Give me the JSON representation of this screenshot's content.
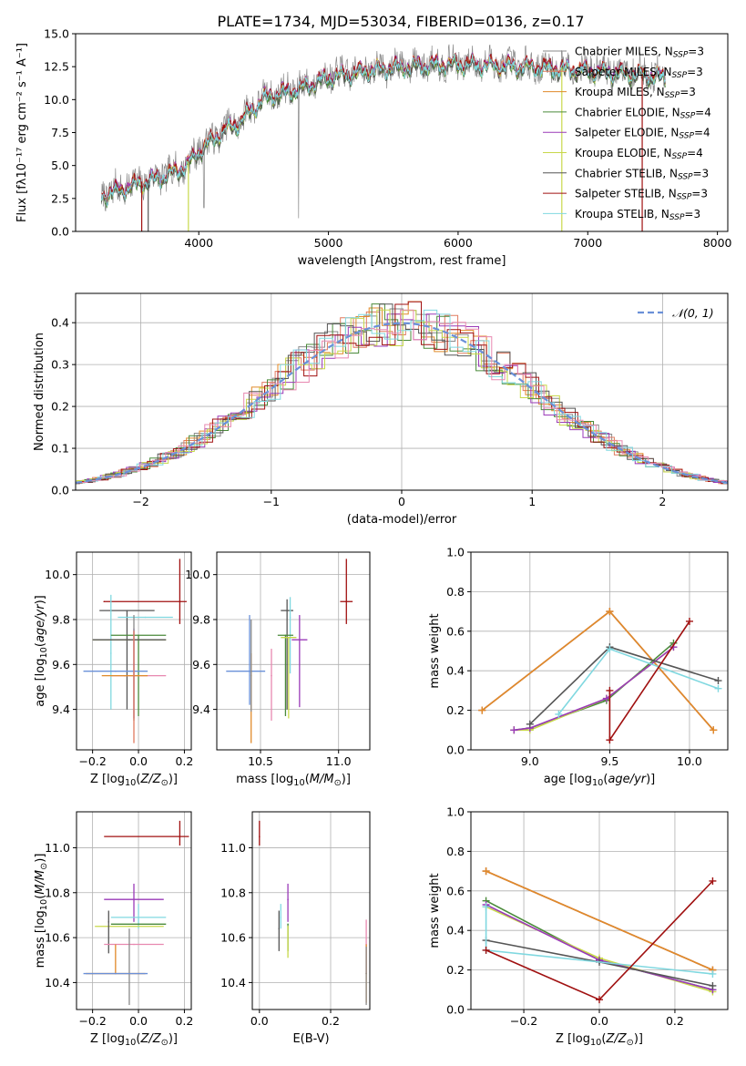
{
  "title": "PLATE=1734, MJD=53034, FIBERID=0136, z=0.17",
  "palette": {
    "chabrier_miles": "#8a8a8a",
    "salpeter_miles": "#e07a5f",
    "kroupa_miles": "#e08a2a",
    "chabrier_elodie": "#4a8a3a",
    "salpeter_elodie": "#9a3ab8",
    "kroupa_elodie": "#c8d84a",
    "chabrier_stelib": "#555555",
    "salpeter_stelib": "#a01010",
    "kroupa_stelib": "#80d8e0",
    "pink": "#e888b0",
    "blue_line": "#6a90d8"
  },
  "chart_data": [
    {
      "id": "spectrum",
      "type": "line",
      "title": "PLATE=1734, MJD=53034, FIBERID=0136, z=0.17",
      "xlabel": "wavelength [Angstrom, rest frame]",
      "ylabel": "Flux [fλ10⁻¹⁷ erg cm⁻² s⁻¹ A⁻¹]",
      "xlim": [
        3050,
        8080
      ],
      "ylim": [
        0,
        15
      ],
      "xticks": [
        4000,
        5000,
        6000,
        7000,
        8000
      ],
      "yticks": [
        0.0,
        2.5,
        5.0,
        7.5,
        10.0,
        12.5,
        15.0
      ],
      "grid": false,
      "legend_position": "top-right",
      "legend": [
        "Chabrier MILES, NSSP=3",
        "Salpeter MILES, NSSP=3",
        "Kroupa MILES, NSSP=3",
        "Chabrier ELODIE, NSSP=4",
        "Salpeter ELODIE, NSSP=4",
        "Kroupa ELODIE, NSSP=4",
        "Chabrier STELIB, NSSP=3",
        "Salpeter STELIB, NSSP=3",
        "Kroupa STELIB, NSSP=3"
      ],
      "continuum": {
        "x": [
          3250,
          3500,
          3700,
          3900,
          4000,
          4200,
          4300,
          4500,
          4800,
          5000,
          5300,
          5600,
          6000,
          6500,
          7000,
          7400,
          7600
        ],
        "y": [
          2.8,
          3.6,
          4.2,
          5.0,
          6.2,
          7.8,
          8.3,
          10.2,
          11.0,
          11.8,
          12.3,
          12.6,
          12.8,
          12.6,
          12.3,
          12.0,
          11.8
        ]
      }
    },
    {
      "id": "residuals",
      "type": "line",
      "xlabel": "(data-model)/error",
      "ylabel": "Normed distribution",
      "xlim": [
        -2.5,
        2.5
      ],
      "ylim": [
        0,
        0.47
      ],
      "xticks": [
        -2,
        -1,
        0,
        1,
        2
      ],
      "yticks": [
        0.0,
        0.1,
        0.2,
        0.3,
        0.4
      ],
      "grid": true,
      "legend_position": "top-right",
      "legend": [
        "N(0,1)"
      ],
      "bin_width": 0.1
    },
    {
      "id": "age-vs-Z",
      "type": "scatter",
      "xlabel": "Z [log10(Z/Z⊙)]",
      "ylabel": "age  [log10(age/yr)]",
      "xlim": [
        -0.27,
        0.23
      ],
      "ylim": [
        9.22,
        10.1
      ],
      "xticks": [
        -0.2,
        0.0,
        0.2
      ],
      "yticks": [
        9.4,
        9.6,
        9.8,
        10.0
      ],
      "grid": true,
      "points": [
        {
          "s": "chabrier_stelib",
          "x": -0.05,
          "y": 9.84,
          "xerr": 0.12,
          "yerr": [
            0.44,
            0
          ]
        },
        {
          "s": "salpeter_stelib",
          "x": -0.15,
          "y": 9.88,
          "xerr": [
            0.0,
            0.36
          ],
          "yerr": 0
        },
        {
          "s": "salpeter_stelib",
          "x": 0.18,
          "y": 9.88,
          "xerr": 0,
          "yerr": [
            0.1,
            0.19
          ]
        },
        {
          "s": "kroupa_stelib",
          "x": 0.03,
          "y": 9.81,
          "xerr": 0.12,
          "yerr": 0
        },
        {
          "s": "kroupa_stelib",
          "x": -0.12,
          "y": 9.65,
          "xerr": 0,
          "yerr": [
            0.25,
            0.26
          ]
        },
        {
          "s": "chabrier_elodie",
          "x": 0.0,
          "y": 9.73,
          "xerr": 0.12,
          "yerr": [
            0.36,
            0
          ]
        },
        {
          "s": "kroupa_elodie",
          "x": -0.04,
          "y": 9.71,
          "xerr": 0.16,
          "yerr": 0
        },
        {
          "s": "chabrier_stelib",
          "x": -0.04,
          "y": 9.71,
          "xerr": 0.16,
          "yerr": 0
        },
        {
          "s": "salpeter_elodie",
          "x": -0.02,
          "y": 9.6,
          "xerr": 0,
          "yerr": [
            0.24,
            0.16
          ]
        },
        {
          "s": "chabrier_miles",
          "x": -0.02,
          "y": 9.55,
          "xerr": 0,
          "yerr": [
            0.2,
            0.27
          ]
        },
        {
          "s": "blue_line",
          "x": -0.1,
          "y": 9.57,
          "xerr": 0.14,
          "yerr": 0
        },
        {
          "s": "pink",
          "x": 0.0,
          "y": 9.55,
          "xerr": 0.12,
          "yerr": 0
        },
        {
          "s": "kroupa_miles",
          "x": -0.06,
          "y": 9.55,
          "xerr": 0.1,
          "yerr": 0
        },
        {
          "s": "salpeter_miles",
          "x": -0.02,
          "y": 9.55,
          "xerr": 0,
          "yerr": [
            0.3,
            0.2
          ]
        }
      ]
    },
    {
      "id": "age-vs-mass",
      "type": "scatter",
      "xlabel": "mass [log10(M/M⊙)]",
      "ylabel": "",
      "xlim": [
        10.22,
        11.2
      ],
      "ylim": [
        9.22,
        10.1
      ],
      "xticks": [
        10.5,
        11.0
      ],
      "yticks": [
        9.4,
        9.6,
        9.8,
        10.0
      ],
      "grid": true,
      "points": [
        {
          "s": "salpeter_stelib",
          "x": 11.05,
          "y": 9.88,
          "xerr": 0.04,
          "yerr": [
            0.1,
            0.19
          ]
        },
        {
          "s": "chabrier_stelib",
          "x": 10.67,
          "y": 9.84,
          "xerr": 0.04,
          "yerr": [
            0.44,
            0.05
          ]
        },
        {
          "s": "kroupa_stelib",
          "x": 10.69,
          "y": 9.81,
          "xerr": 0,
          "yerr": [
            0.25,
            0.09
          ]
        },
        {
          "s": "chabrier_elodie",
          "x": 10.66,
          "y": 9.73,
          "xerr": 0.05,
          "yerr": [
            0.36,
            0
          ]
        },
        {
          "s": "kroupa_elodie",
          "x": 10.68,
          "y": 9.72,
          "xerr": 0.05,
          "yerr": [
            0.36,
            0
          ]
        },
        {
          "s": "salpeter_elodie",
          "x": 10.75,
          "y": 9.71,
          "xerr": 0.05,
          "yerr": [
            0.3,
            0.11
          ]
        },
        {
          "s": "blue_line",
          "x": 10.43,
          "y": 9.57,
          "xerr": [
            0.15,
            0.1
          ],
          "yerr": [
            0.15,
            0.25
          ]
        },
        {
          "s": "pink",
          "x": 10.57,
          "y": 9.55,
          "xerr": 0,
          "yerr": [
            0.2,
            0.12
          ]
        },
        {
          "s": "kroupa_miles",
          "x": 10.44,
          "y": 9.55,
          "xerr": 0,
          "yerr": [
            0.3,
            0.1
          ]
        },
        {
          "s": "chabrier_miles",
          "x": 10.44,
          "y": 9.57,
          "xerr": 0,
          "yerr": [
            0.18,
            0.23
          ]
        }
      ]
    },
    {
      "id": "mass-weight-vs-age",
      "type": "line",
      "xlabel": "age  [log10(age/yr)]",
      "ylabel": "mass weight",
      "xlim": [
        8.63,
        10.24
      ],
      "ylim": [
        0,
        1
      ],
      "xticks": [
        9.0,
        9.5,
        10.0
      ],
      "yticks": [
        0.0,
        0.2,
        0.4,
        0.6,
        0.8,
        1.0
      ],
      "grid": true,
      "series": [
        {
          "s": "chabrier_miles",
          "x": [
            8.7,
            9.5,
            10.15
          ],
          "y": [
            0.2,
            0.7,
            0.1
          ]
        },
        {
          "s": "salpeter_miles",
          "x": [
            8.7,
            9.5,
            10.15
          ],
          "y": [
            0.2,
            0.7,
            0.1
          ]
        },
        {
          "s": "kroupa_miles",
          "x": [
            8.7,
            9.5,
            10.15
          ],
          "y": [
            0.2,
            0.7,
            0.1
          ]
        },
        {
          "s": "chabrier_elodie",
          "x": [
            8.9,
            9.0,
            9.48,
            9.9
          ],
          "y": [
            0.1,
            0.11,
            0.25,
            0.54
          ]
        },
        {
          "s": "kroupa_elodie",
          "x": [
            8.9,
            9.0,
            9.48,
            9.9
          ],
          "y": [
            0.1,
            0.1,
            0.26,
            0.52
          ]
        },
        {
          "s": "salpeter_elodie",
          "x": [
            8.9,
            9.0,
            9.48,
            9.9
          ],
          "y": [
            0.1,
            0.11,
            0.26,
            0.52
          ]
        },
        {
          "s": "chabrier_stelib",
          "x": [
            9.0,
            9.5,
            10.18
          ],
          "y": [
            0.13,
            0.52,
            0.35
          ]
        },
        {
          "s": "kroupa_stelib",
          "x": [
            9.18,
            9.5,
            10.18
          ],
          "y": [
            0.18,
            0.51,
            0.31
          ]
        },
        {
          "s": "salpeter_stelib",
          "x": [
            9.5,
            9.5,
            10.0
          ],
          "y": [
            0.3,
            0.05,
            0.65
          ]
        }
      ]
    },
    {
      "id": "mass-vs-Z",
      "type": "scatter",
      "xlabel": "Z [log10(Z/Z⊙)]",
      "ylabel": "mass [log10(M/M⊙)]",
      "xlim": [
        -0.27,
        0.23
      ],
      "ylim": [
        10.28,
        11.16
      ],
      "xticks": [
        -0.2,
        0.0,
        0.2
      ],
      "yticks": [
        10.4,
        10.6,
        10.8,
        11.0
      ],
      "grid": true,
      "points": [
        {
          "s": "salpeter_stelib",
          "x": 0.18,
          "y": 11.05,
          "xerr": [
            0.33,
            0.04
          ],
          "yerr": [
            0.04,
            0.07
          ]
        },
        {
          "s": "salpeter_elodie",
          "x": -0.02,
          "y": 10.77,
          "xerr": 0.13,
          "yerr": [
            0.1,
            0.07
          ]
        },
        {
          "s": "kroupa_stelib",
          "x": 0.0,
          "y": 10.69,
          "xerr": 0.12,
          "yerr": [
            0.05,
            0.06
          ]
        },
        {
          "s": "chabrier_elodie",
          "x": 0.0,
          "y": 10.66,
          "xerr": 0.12,
          "yerr": 0
        },
        {
          "s": "kroupa_elodie",
          "x": -0.04,
          "y": 10.65,
          "xerr": 0.15,
          "yerr": 0
        },
        {
          "s": "chabrier_stelib",
          "x": -0.13,
          "y": 10.67,
          "xerr": 0,
          "yerr": [
            0.14,
            0.05
          ]
        },
        {
          "s": "pink",
          "x": -0.02,
          "y": 10.57,
          "xerr": 0.13,
          "yerr": 0
        },
        {
          "s": "chabrier_miles",
          "x": -0.04,
          "y": 10.44,
          "xerr": 0,
          "yerr": [
            0.14,
            0.2
          ]
        },
        {
          "s": "kroupa_miles",
          "x": -0.1,
          "y": 10.44,
          "xerr": 0.13,
          "yerr": [
            0,
            0.13
          ]
        },
        {
          "s": "blue_line",
          "x": -0.1,
          "y": 10.44,
          "xerr": 0.14,
          "yerr": 0
        }
      ]
    },
    {
      "id": "mass-vs-EBV",
      "type": "scatter",
      "xlabel": "E(B-V)",
      "ylabel": "",
      "xlim": [
        -0.02,
        0.31
      ],
      "ylim": [
        10.28,
        11.16
      ],
      "xticks": [
        0.0,
        0.2
      ],
      "yticks": [
        10.4,
        10.6,
        10.8,
        11.0
      ],
      "grid": true,
      "points": [
        {
          "s": "salpeter_stelib",
          "x": 0.0,
          "y": 11.05,
          "xerr": 0,
          "yerr": [
            0.04,
            0.07
          ]
        },
        {
          "s": "salpeter_elodie",
          "x": 0.08,
          "y": 10.77,
          "xerr": 0,
          "yerr": [
            0.1,
            0.07
          ]
        },
        {
          "s": "kroupa_stelib",
          "x": 0.06,
          "y": 10.69,
          "xerr": 0,
          "yerr": [
            0.05,
            0.06
          ]
        },
        {
          "s": "chabrier_elodie",
          "x": 0.08,
          "y": 10.66,
          "xerr": 0,
          "yerr": [
            0.12,
            0
          ]
        },
        {
          "s": "kroupa_elodie",
          "x": 0.08,
          "y": 10.65,
          "xerr": 0,
          "yerr": [
            0.14,
            0
          ]
        },
        {
          "s": "chabrier_stelib",
          "x": 0.055,
          "y": 10.64,
          "xerr": 0,
          "yerr": [
            0.1,
            0.08
          ]
        },
        {
          "s": "pink",
          "x": 0.3,
          "y": 10.57,
          "xerr": 0,
          "yerr": [
            0.13,
            0.11
          ]
        },
        {
          "s": "kroupa_miles",
          "x": 0.3,
          "y": 10.44,
          "xerr": 0,
          "yerr": [
            0.13,
            0.13
          ]
        },
        {
          "s": "chabrier_miles",
          "x": 0.3,
          "y": 10.44,
          "xerr": 0,
          "yerr": [
            0.14,
            0.12
          ]
        }
      ]
    },
    {
      "id": "mass-weight-vs-Z",
      "type": "line",
      "xlabel": "Z [log10(Z/Z⊙)]",
      "ylabel": "mass weight",
      "xlim": [
        -0.34,
        0.34
      ],
      "ylim": [
        0,
        1
      ],
      "xticks": [
        -0.2,
        0.0,
        0.2
      ],
      "yticks": [
        0.0,
        0.2,
        0.4,
        0.6,
        0.8,
        1.0
      ],
      "grid": true,
      "series": [
        {
          "s": "chabrier_miles",
          "x": [
            -0.3,
            0.3
          ],
          "y": [
            0.7,
            0.2
          ]
        },
        {
          "s": "salpeter_miles",
          "x": [
            -0.3,
            0.3
          ],
          "y": [
            0.7,
            0.2
          ]
        },
        {
          "s": "kroupa_miles",
          "x": [
            -0.3,
            0.3
          ],
          "y": [
            0.7,
            0.2
          ]
        },
        {
          "s": "chabrier_elodie",
          "x": [
            -0.3,
            0.0,
            0.3
          ],
          "y": [
            0.55,
            0.25,
            0.1
          ]
        },
        {
          "s": "kroupa_elodie",
          "x": [
            -0.3,
            0.0,
            0.3
          ],
          "y": [
            0.52,
            0.26,
            0.09
          ]
        },
        {
          "s": "salpeter_elodie",
          "x": [
            -0.3,
            0.0,
            0.3
          ],
          "y": [
            0.53,
            0.25,
            0.1
          ]
        },
        {
          "s": "chabrier_stelib",
          "x": [
            -0.3,
            0.0,
            0.3
          ],
          "y": [
            0.35,
            0.24,
            0.12
          ]
        },
        {
          "s": "kroupa_stelib",
          "x": [
            -0.3,
            -0.3,
            0.3
          ],
          "y": [
            0.52,
            0.3,
            0.18
          ]
        },
        {
          "s": "salpeter_stelib",
          "x": [
            -0.3,
            0.0,
            0.3
          ],
          "y": [
            0.3,
            0.05,
            0.65
          ]
        }
      ]
    }
  ]
}
